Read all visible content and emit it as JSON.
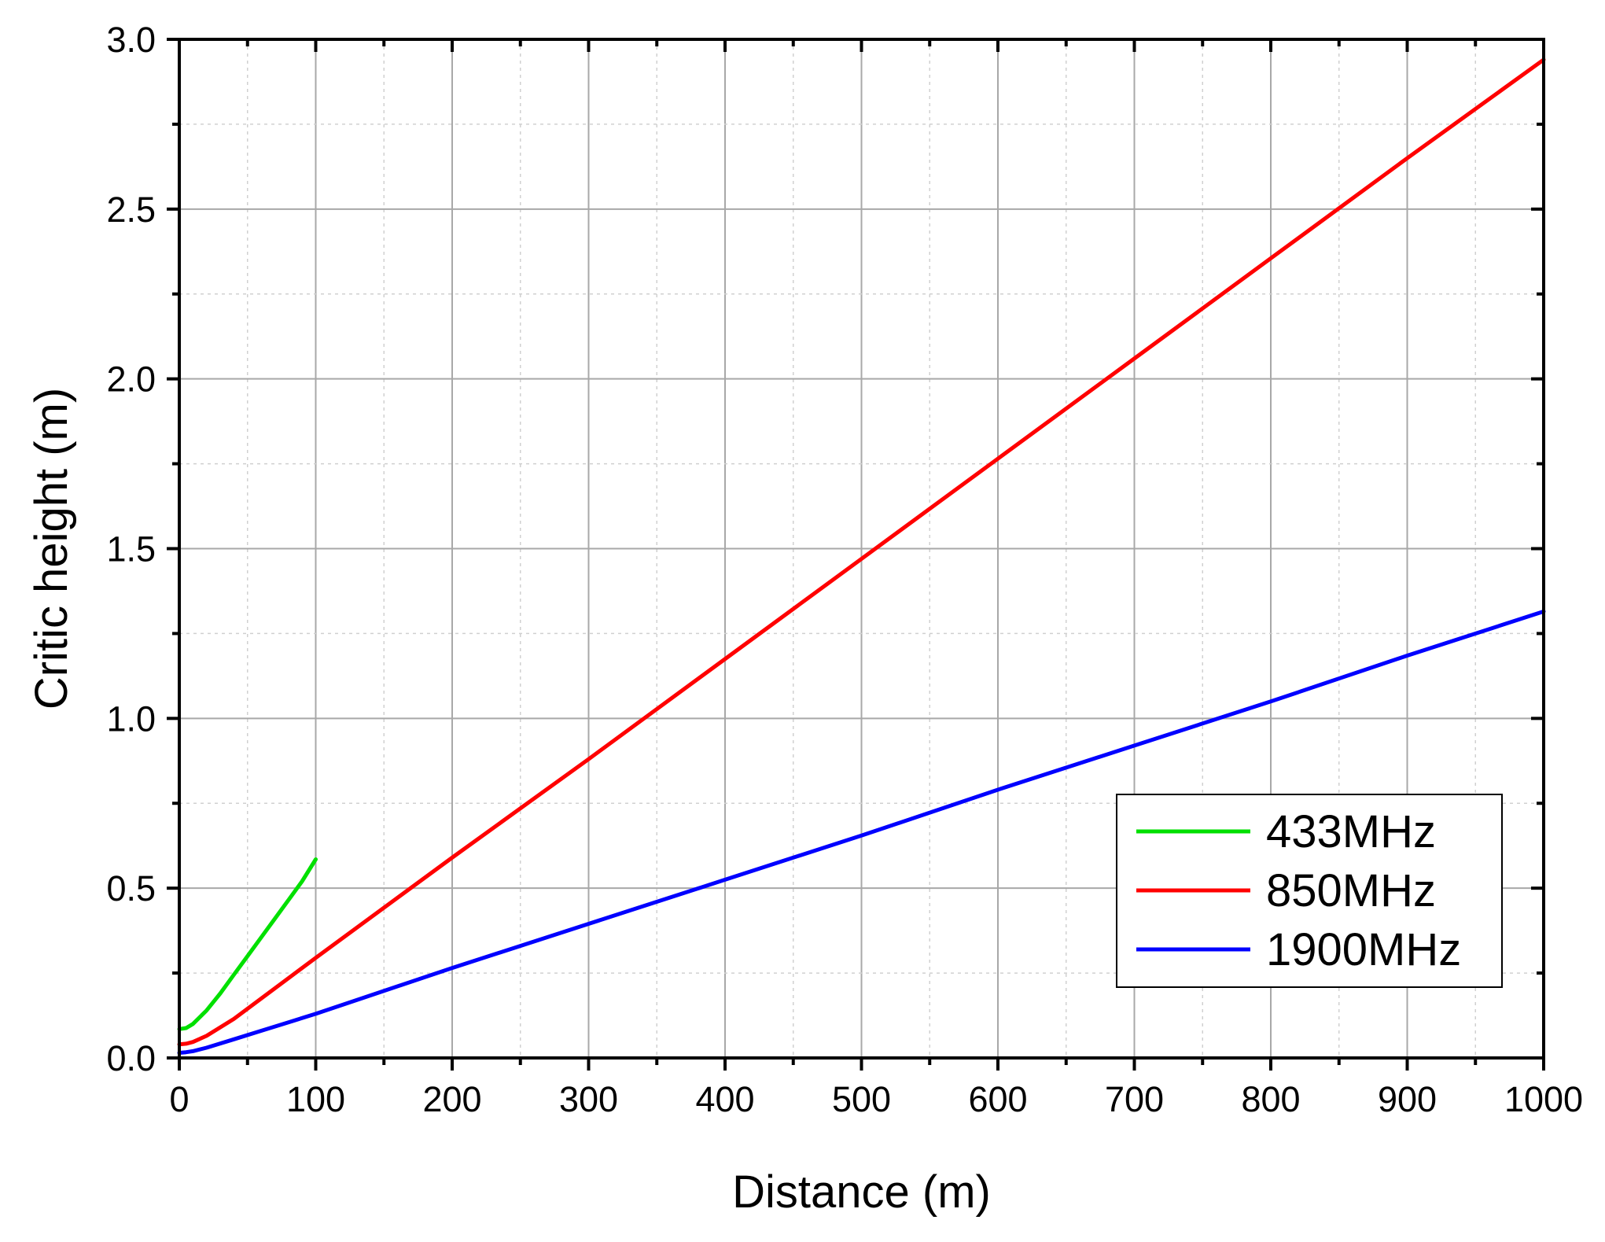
{
  "chart_data": {
    "type": "line",
    "title": "",
    "xlabel": "Distance (m)",
    "ylabel": "Critic height (m)",
    "xlim": [
      0,
      1000
    ],
    "ylim": [
      0,
      3.0
    ],
    "x_ticks": [
      "0",
      "100",
      "200",
      "300",
      "400",
      "500",
      "600",
      "700",
      "800",
      "900",
      "1000"
    ],
    "y_ticks": [
      "0.0",
      "0.5",
      "1.0",
      "1.5",
      "2.0",
      "2.5",
      "3.0"
    ],
    "grid": true,
    "legend": "bottom-right",
    "series": [
      {
        "name": "433MHz",
        "color": "#00e000",
        "x": [
          0,
          5,
          10,
          20,
          30,
          40,
          50,
          60,
          70,
          80,
          90,
          100
        ],
        "y": [
          0.085,
          0.088,
          0.1,
          0.14,
          0.19,
          0.245,
          0.3,
          0.355,
          0.41,
          0.465,
          0.52,
          0.585
        ]
      },
      {
        "name": "850MHz",
        "color": "#ff0000",
        "x": [
          0,
          5,
          10,
          20,
          40,
          60,
          80,
          100,
          200,
          300,
          400,
          500,
          600,
          700,
          800,
          900,
          1000
        ],
        "y": [
          0.04,
          0.042,
          0.047,
          0.065,
          0.115,
          0.175,
          0.235,
          0.295,
          0.59,
          0.88,
          1.175,
          1.47,
          1.765,
          2.06,
          2.355,
          2.65,
          2.94
        ]
      },
      {
        "name": "1900MHz",
        "color": "#0000ff",
        "x": [
          0,
          5,
          10,
          20,
          40,
          60,
          80,
          100,
          200,
          300,
          400,
          500,
          600,
          700,
          800,
          900,
          1000
        ],
        "y": [
          0.015,
          0.017,
          0.02,
          0.03,
          0.055,
          0.08,
          0.105,
          0.13,
          0.265,
          0.395,
          0.525,
          0.655,
          0.79,
          0.92,
          1.05,
          1.185,
          1.315
        ]
      }
    ]
  }
}
